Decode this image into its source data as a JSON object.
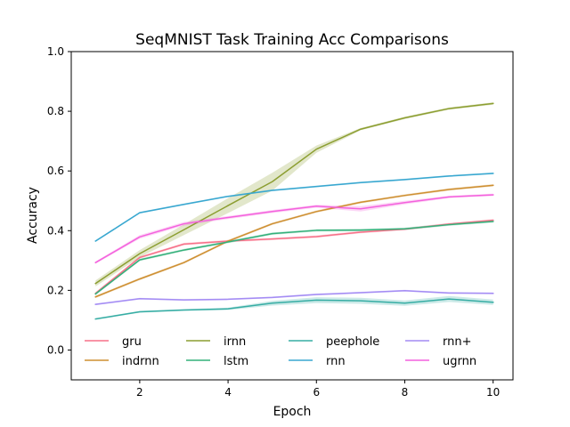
{
  "chart_data": {
    "type": "line",
    "title": "SeqMNIST Task Training Acc  Comparisons",
    "xlabel": "Epoch",
    "ylabel": "Accuracy",
    "xlim": [
      0.45,
      10.45
    ],
    "ylim": [
      -0.1,
      1.0
    ],
    "xticks": [
      2,
      4,
      6,
      8,
      10
    ],
    "yticks": [
      0.0,
      0.2,
      0.4,
      0.6,
      0.8,
      1.0
    ],
    "xtick_labels": [
      "2",
      "4",
      "6",
      "8",
      "10"
    ],
    "ytick_labels": [
      "0.0",
      "0.2",
      "0.4",
      "0.6",
      "0.8",
      "1.0"
    ],
    "grid": false,
    "legend_placement": "lower-center",
    "x": [
      1,
      2,
      3,
      4,
      5,
      6,
      7,
      8,
      9,
      10
    ],
    "series": [
      {
        "name": "gru",
        "color": "#f77189",
        "values": [
          0.19,
          0.31,
          0.355,
          0.365,
          0.372,
          0.38,
          0.395,
          0.405,
          0.422,
          0.435
        ],
        "band": 0.004
      },
      {
        "name": "indrnn",
        "color": "#ce8f31",
        "values": [
          0.178,
          0.238,
          0.293,
          0.365,
          0.423,
          0.464,
          0.495,
          0.518,
          0.538,
          0.552
        ],
        "band": 0.004
      },
      {
        "name": "irnn",
        "color": "#8c9e31",
        "values": [
          0.223,
          0.323,
          0.403,
          0.484,
          0.564,
          0.673,
          0.74,
          0.778,
          0.809,
          0.826
        ],
        "band": [
          0.01,
          0.012,
          0.018,
          0.025,
          0.03,
          0.012,
          0.004,
          0.004,
          0.004,
          0.004
        ]
      },
      {
        "name": "lstm",
        "color": "#33b07a",
        "values": [
          0.188,
          0.302,
          0.335,
          0.362,
          0.39,
          0.401,
          0.402,
          0.406,
          0.42,
          0.431
        ],
        "band": 0.004
      },
      {
        "name": "peephole",
        "color": "#36ada4",
        "values": [
          0.104,
          0.128,
          0.134,
          0.138,
          0.157,
          0.167,
          0.165,
          0.157,
          0.171,
          0.16
        ],
        "band": [
          0.003,
          0.003,
          0.003,
          0.004,
          0.008,
          0.01,
          0.01,
          0.009,
          0.01,
          0.009
        ]
      },
      {
        "name": "rnn",
        "color": "#38a7d0",
        "values": [
          0.365,
          0.46,
          0.488,
          0.515,
          0.535,
          0.548,
          0.561,
          0.571,
          0.583,
          0.592
        ],
        "band": 0.003
      },
      {
        "name": "rnn+",
        "color": "#a48cf4",
        "values": [
          0.153,
          0.172,
          0.168,
          0.17,
          0.176,
          0.186,
          0.192,
          0.199,
          0.191,
          0.19
        ],
        "band": 0.003
      },
      {
        "name": "ugrnn",
        "color": "#f461dd",
        "values": [
          0.293,
          0.379,
          0.423,
          0.444,
          0.464,
          0.482,
          0.473,
          0.494,
          0.513,
          0.52
        ],
        "band": [
          0.004,
          0.006,
          0.006,
          0.005,
          0.005,
          0.005,
          0.009,
          0.006,
          0.004,
          0.004
        ]
      }
    ]
  }
}
